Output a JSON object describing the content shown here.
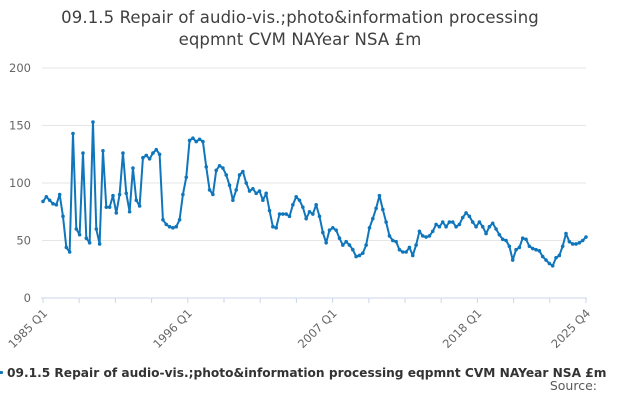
{
  "title": {
    "line1": "09.1.5 Repair of audio-vis.;photo&information processing",
    "line2": "eqpmnt CVM NAYear NSA £m"
  },
  "legend": {
    "label": "09.1.5 Repair of audio-vis.;photo&information processing eqpmnt CVM NAYear NSA £m"
  },
  "footer": {
    "source": "Source:"
  },
  "chart_data": {
    "type": "line",
    "title": "09.1.5 Repair of audio-vis.;photo&information processing eqpmnt CVM NAYear NSA £m",
    "frequency": "quarterly",
    "x_start": "1985 Q1",
    "x_end": "2025 Q4",
    "ylim": [
      0,
      200
    ],
    "y_ticks": [
      0,
      50,
      100,
      150,
      200
    ],
    "grid": true,
    "legend_position": "bottom-left",
    "x_tick_count": 16,
    "x_labeled_ticks": [
      {
        "index": 0,
        "label": "1985 Q1"
      },
      {
        "index": 4,
        "label": "1996 Q1"
      },
      {
        "index": 8,
        "label": "2007 Q1"
      },
      {
        "index": 12,
        "label": "2018 Q1"
      },
      {
        "index": 15,
        "label": "2025 Q4"
      }
    ],
    "colors": {
      "line": "#1076bc",
      "grid": "#e6e6e6",
      "axis": "#ccd6eb",
      "axis_text": "#666666"
    },
    "values": [
      84,
      88,
      85,
      82,
      81,
      90,
      71,
      44,
      40,
      143,
      60,
      55,
      126,
      52,
      48,
      153,
      60,
      47,
      128,
      79,
      79,
      89,
      74,
      90,
      126,
      91,
      75,
      113,
      85,
      80,
      122,
      124,
      121,
      126,
      129,
      125,
      68,
      64,
      62,
      61,
      62,
      68,
      90,
      105,
      137,
      139,
      136,
      138,
      136,
      114,
      94,
      90,
      111,
      115,
      113,
      107,
      98,
      85,
      94,
      107,
      110,
      100,
      93,
      95,
      91,
      93,
      85,
      91,
      76,
      62,
      61,
      73,
      73,
      73,
      71,
      81,
      88,
      85,
      79,
      69,
      75,
      73,
      81,
      71,
      57,
      48,
      59,
      61,
      59,
      52,
      46,
      49,
      46,
      42,
      36,
      37,
      39,
      46,
      61,
      69,
      78,
      89,
      77,
      66,
      54,
      50,
      49,
      42,
      40,
      40,
      44,
      37,
      46,
      58,
      54,
      53,
      54,
      58,
      64,
      62,
      66,
      62,
      66,
      66,
      62,
      64,
      70,
      74,
      71,
      66,
      62,
      66,
      62,
      56,
      62,
      65,
      60,
      55,
      51,
      50,
      45,
      33,
      42,
      44,
      52,
      51,
      45,
      43,
      42,
      41,
      36,
      33,
      30,
      28,
      35,
      37,
      45,
      56,
      49,
      47,
      47,
      48,
      50,
      53
    ]
  }
}
